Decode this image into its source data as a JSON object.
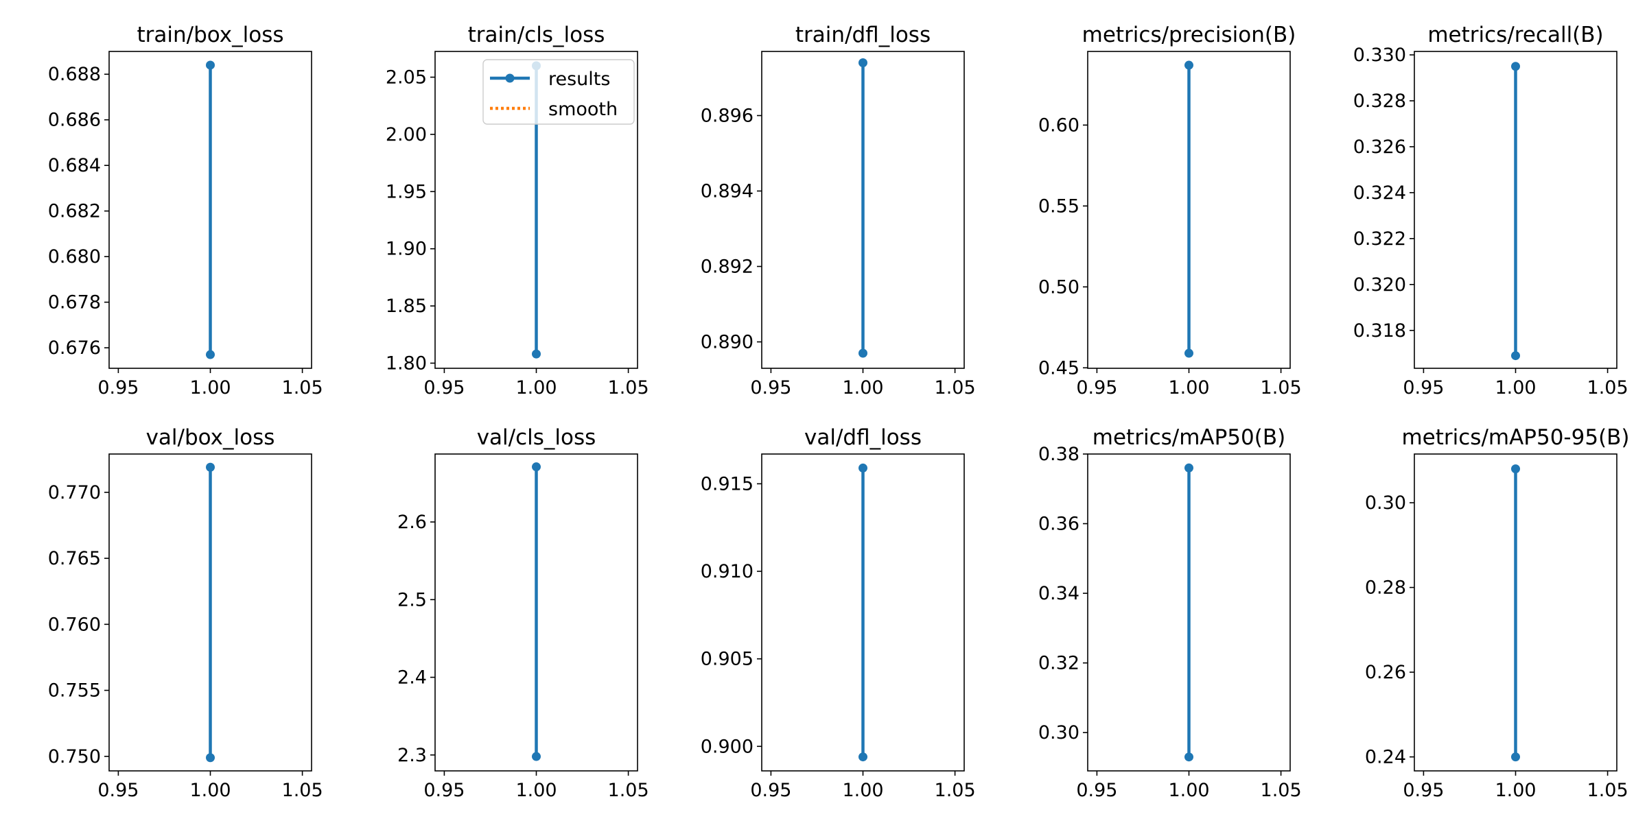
{
  "colors": {
    "results": "#1f77b4",
    "smooth": "#ff7f0e",
    "frame": "#000000",
    "background": "#ffffff"
  },
  "chart_data": [
    {
      "type": "line",
      "title": "train/box_loss",
      "x": [
        1.0,
        1.0
      ],
      "y": [
        0.6884,
        0.6757
      ],
      "xlim": [
        0.945,
        1.055
      ],
      "ylim": [
        0.6751,
        0.689
      ],
      "xticks": [
        "0.95",
        "1.00",
        "1.05"
      ],
      "yticks": [
        0.676,
        0.678,
        0.68,
        0.682,
        0.684,
        0.686,
        0.688
      ],
      "ytick_labels": [
        "0.676",
        "0.678",
        "0.680",
        "0.682",
        "0.684",
        "0.686",
        "0.688"
      ]
    },
    {
      "type": "line",
      "title": "train/cls_loss",
      "x": [
        1.0,
        1.0
      ],
      "y": [
        2.06,
        1.808
      ],
      "xlim": [
        0.945,
        1.055
      ],
      "ylim": [
        1.7955,
        2.0725
      ],
      "xticks": [
        "0.95",
        "1.00",
        "1.05"
      ],
      "yticks": [
        1.8,
        1.85,
        1.9,
        1.95,
        2.0,
        2.05
      ],
      "ytick_labels": [
        "1.80",
        "1.85",
        "1.90",
        "1.95",
        "2.00",
        "2.05"
      ],
      "legend": {
        "position": "upper-right",
        "entries": [
          {
            "label": "results",
            "style": "solid-marker",
            "color": "#1f77b4"
          },
          {
            "label": "smooth",
            "style": "dotted",
            "color": "#ff7f0e"
          }
        ]
      }
    },
    {
      "type": "line",
      "title": "train/dfl_loss",
      "x": [
        1.0,
        1.0
      ],
      "y": [
        0.8974,
        0.8897
      ],
      "xlim": [
        0.945,
        1.055
      ],
      "ylim": [
        0.8893,
        0.8977
      ],
      "xticks": [
        "0.95",
        "1.00",
        "1.05"
      ],
      "yticks": [
        0.89,
        0.892,
        0.894,
        0.896
      ],
      "ytick_labels": [
        "0.890",
        "0.892",
        "0.894",
        "0.896"
      ]
    },
    {
      "type": "line",
      "title": "metrics/precision(B)",
      "x": [
        1.0,
        1.0
      ],
      "y": [
        0.637,
        0.459
      ],
      "xlim": [
        0.945,
        1.055
      ],
      "ylim": [
        0.4497,
        0.6455
      ],
      "xticks": [
        "0.95",
        "1.00",
        "1.05"
      ],
      "yticks": [
        0.45,
        0.5,
        0.55,
        0.6
      ],
      "ytick_labels": [
        "0.45",
        "0.50",
        "0.55",
        "0.60"
      ]
    },
    {
      "type": "line",
      "title": "metrics/recall(B)",
      "x": [
        1.0,
        1.0
      ],
      "y": [
        0.3295,
        0.3169
      ],
      "xlim": [
        0.945,
        1.055
      ],
      "ylim": [
        0.31635,
        0.33015
      ],
      "xticks": [
        "0.95",
        "1.00",
        "1.05"
      ],
      "yticks": [
        0.318,
        0.32,
        0.322,
        0.324,
        0.326,
        0.328,
        0.33
      ],
      "ytick_labels": [
        "0.318",
        "0.320",
        "0.322",
        "0.324",
        "0.326",
        "0.328",
        "0.330"
      ]
    },
    {
      "type": "line",
      "title": "val/box_loss",
      "x": [
        1.0,
        1.0
      ],
      "y": [
        0.7719,
        0.7499
      ],
      "xlim": [
        0.945,
        1.055
      ],
      "ylim": [
        0.7489,
        0.7729
      ],
      "xticks": [
        "0.95",
        "1.00",
        "1.05"
      ],
      "yticks": [
        0.75,
        0.755,
        0.76,
        0.765,
        0.77
      ],
      "ytick_labels": [
        "0.750",
        "0.755",
        "0.760",
        "0.765",
        "0.770"
      ]
    },
    {
      "type": "line",
      "title": "val/cls_loss",
      "x": [
        1.0,
        1.0
      ],
      "y": [
        2.671,
        2.298
      ],
      "xlim": [
        0.945,
        1.055
      ],
      "ylim": [
        2.2795,
        2.6875
      ],
      "xticks": [
        "0.95",
        "1.00",
        "1.05"
      ],
      "yticks": [
        2.3,
        2.4,
        2.5,
        2.6
      ],
      "ytick_labels": [
        "2.3",
        "2.4",
        "2.5",
        "2.6"
      ]
    },
    {
      "type": "line",
      "title": "val/dfl_loss",
      "x": [
        1.0,
        1.0
      ],
      "y": [
        0.9159,
        0.8994
      ],
      "xlim": [
        0.945,
        1.055
      ],
      "ylim": [
        0.8986,
        0.9167
      ],
      "xticks": [
        "0.95",
        "1.00",
        "1.05"
      ],
      "yticks": [
        0.9,
        0.905,
        0.91,
        0.915
      ],
      "ytick_labels": [
        "0.900",
        "0.905",
        "0.910",
        "0.915"
      ]
    },
    {
      "type": "line",
      "title": "metrics/mAP50(B)",
      "x": [
        1.0,
        1.0
      ],
      "y": [
        0.376,
        0.293
      ],
      "xlim": [
        0.945,
        1.055
      ],
      "ylim": [
        0.289,
        0.38
      ],
      "xticks": [
        "0.95",
        "1.00",
        "1.05"
      ],
      "yticks": [
        0.3,
        0.32,
        0.34,
        0.36,
        0.38
      ],
      "ytick_labels": [
        "0.30",
        "0.32",
        "0.34",
        "0.36",
        "0.38"
      ]
    },
    {
      "type": "line",
      "title": "metrics/mAP50-95(B)",
      "x": [
        1.0,
        1.0
      ],
      "y": [
        0.308,
        0.24
      ],
      "xlim": [
        0.945,
        1.055
      ],
      "ylim": [
        0.2367,
        0.3115
      ],
      "xticks": [
        "0.95",
        "1.00",
        "1.05"
      ],
      "yticks": [
        0.24,
        0.26,
        0.28,
        0.3
      ],
      "ytick_labels": [
        "0.24",
        "0.26",
        "0.28",
        "0.30"
      ]
    }
  ]
}
